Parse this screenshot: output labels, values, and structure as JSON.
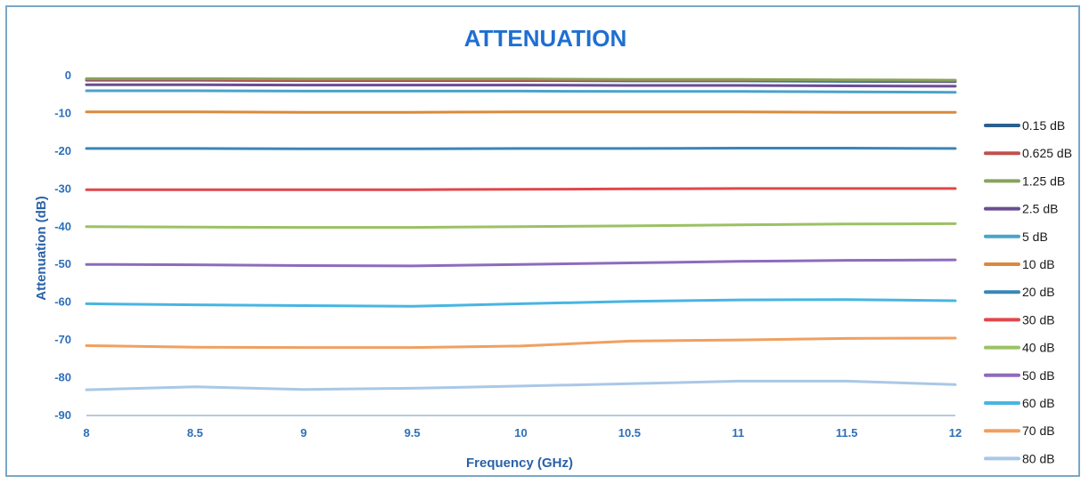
{
  "chart_data": {
    "type": "line",
    "title": "ATTENUATION",
    "xlabel": "Frequency (GHz)",
    "ylabel": "Attenuation (dB)",
    "xlim": [
      8,
      12
    ],
    "ylim": [
      -90,
      0
    ],
    "x_ticks": [
      "8",
      "8.5",
      "9",
      "9.5",
      "10",
      "10.5",
      "11",
      "11.5",
      "12"
    ],
    "y_ticks": [
      "0",
      "-10",
      "-20",
      "-30",
      "-40",
      "-50",
      "-60",
      "-70",
      "-80",
      "-90"
    ],
    "x_tick_values": [
      8,
      8.5,
      9,
      9.5,
      10,
      10.5,
      11,
      11.5,
      12
    ],
    "y_tick_values": [
      0,
      -10,
      -20,
      -30,
      -40,
      -50,
      -60,
      -70,
      -80,
      -90
    ],
    "grid": "horizontal only at bottom",
    "legend_position": "right",
    "x": [
      8,
      8.5,
      9,
      9.5,
      10,
      10.5,
      11,
      11.5,
      12
    ],
    "series": [
      {
        "name": "0.15 dB",
        "color": "#2b5f8f",
        "values": [
          -1.2,
          -1.2,
          -1.3,
          -1.3,
          -1.3,
          -1.4,
          -1.4,
          -1.5,
          -1.6
        ]
      },
      {
        "name": "0.625 dB",
        "color": "#c0504d",
        "values": [
          -1.0,
          -1.0,
          -1.1,
          -1.1,
          -1.1,
          -1.2,
          -1.2,
          -1.3,
          -1.4
        ]
      },
      {
        "name": "1.25 dB",
        "color": "#8aa35c",
        "values": [
          -0.8,
          -0.8,
          -0.9,
          -0.9,
          -0.9,
          -1.0,
          -1.0,
          -1.1,
          -1.2
        ]
      },
      {
        "name": "2.5 dB",
        "color": "#6a4e93",
        "values": [
          -2.4,
          -2.4,
          -2.5,
          -2.5,
          -2.5,
          -2.6,
          -2.6,
          -2.7,
          -2.8
        ]
      },
      {
        "name": "5 dB",
        "color": "#4aa3c9",
        "values": [
          -4.0,
          -4.0,
          -4.1,
          -4.1,
          -4.1,
          -4.2,
          -4.2,
          -4.3,
          -4.4
        ]
      },
      {
        "name": "10 dB",
        "color": "#d98a3d",
        "values": [
          -9.6,
          -9.6,
          -9.7,
          -9.7,
          -9.6,
          -9.6,
          -9.6,
          -9.7,
          -9.7
        ]
      },
      {
        "name": "20 dB",
        "color": "#3a86b8",
        "values": [
          -19.3,
          -19.3,
          -19.4,
          -19.4,
          -19.3,
          -19.3,
          -19.2,
          -19.2,
          -19.3
        ]
      },
      {
        "name": "30 dB",
        "color": "#e0474c",
        "values": [
          -30.2,
          -30.2,
          -30.2,
          -30.2,
          -30.1,
          -30.0,
          -29.9,
          -29.9,
          -29.9
        ]
      },
      {
        "name": "40 dB",
        "color": "#9bc164",
        "values": [
          -40.0,
          -40.1,
          -40.2,
          -40.2,
          -40.0,
          -39.8,
          -39.5,
          -39.3,
          -39.2
        ]
      },
      {
        "name": "50 dB",
        "color": "#8d6bbd",
        "values": [
          -50.0,
          -50.1,
          -50.3,
          -50.4,
          -50.0,
          -49.6,
          -49.2,
          -48.9,
          -48.8
        ]
      },
      {
        "name": "60 dB",
        "color": "#47b5e3",
        "values": [
          -60.4,
          -60.7,
          -60.9,
          -61.1,
          -60.4,
          -59.8,
          -59.4,
          -59.3,
          -59.6
        ]
      },
      {
        "name": "70 dB",
        "color": "#f0a060",
        "values": [
          -71.5,
          -71.9,
          -72.0,
          -72.0,
          -71.6,
          -70.3,
          -70.0,
          -69.6,
          -69.5
        ]
      },
      {
        "name": "80 dB",
        "color": "#a9c8e6",
        "values": [
          -83.2,
          -82.4,
          -83.1,
          -82.8,
          -82.2,
          -81.6,
          -80.9,
          -80.9,
          -81.8
        ]
      }
    ]
  }
}
